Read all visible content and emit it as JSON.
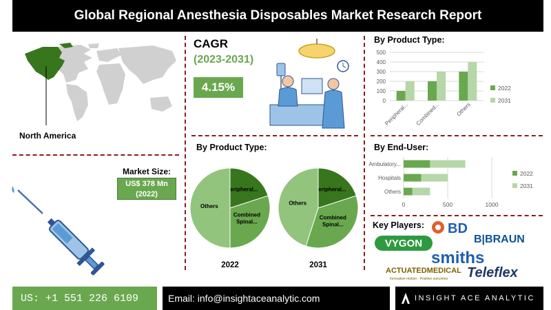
{
  "header": {
    "title": "Global Regional Anesthesia Disposables Market Research Report"
  },
  "region": {
    "label": "North America"
  },
  "market_size": {
    "label": "Market Size:",
    "value": "US$ 378 Mn",
    "year": "(2022)"
  },
  "cagr": {
    "label": "CAGR",
    "period": "(2023-2031)",
    "value": "4.15%"
  },
  "footer": {
    "phone": "US: +1 551 226 6109",
    "email": "Email: info@insightaceanalytic.com",
    "brand": "INSIGHT ACE ANALYTIC"
  },
  "key_players": {
    "title": "Key Players:",
    "logos": [
      "BD",
      "B|BRAUN",
      "VYGON",
      "smiths",
      "ACTUATEDMEDICAL",
      "Innovative motion - Positive outcomes",
      "Teleflex"
    ]
  },
  "colors": {
    "dark_green": "#6aa84f",
    "light_green": "#b6d7a8",
    "pie_dark": "#38761d",
    "pie_mid": "#6aa84f",
    "pie_light": "#93c47d"
  },
  "chart_data": [
    {
      "type": "bar",
      "title": "By Product Type:",
      "categories": [
        "Peripheral...",
        "Combined...",
        "Others"
      ],
      "series": [
        {
          "name": "2022",
          "values": [
            100,
            200,
            300
          ]
        },
        {
          "name": "2031",
          "values": [
            200,
            300,
            400
          ]
        }
      ],
      "ylim": [
        0,
        500
      ],
      "yticks": [
        "0",
        "100",
        "200",
        "300",
        "400",
        "500"
      ],
      "grid": true,
      "legend": "right"
    },
    {
      "type": "pie",
      "title": "By Product Type:",
      "charts": [
        {
          "label": "2022",
          "slices": [
            {
              "name": "Peripheral...",
              "value": 20
            },
            {
              "name": "Combined Spinal...",
              "value": 30
            },
            {
              "name": "Others",
              "value": 50
            }
          ]
        },
        {
          "label": "2031",
          "slices": [
            {
              "name": "Peripheral...",
              "value": 20
            },
            {
              "name": "Combined Spinal...",
              "value": 35
            },
            {
              "name": "Others",
              "value": 45
            }
          ]
        }
      ]
    },
    {
      "type": "bar",
      "orientation": "horizontal",
      "title": "By End-User:",
      "categories": [
        "Ambulatory...",
        "Hospitals",
        "Others"
      ],
      "series": [
        {
          "name": "2022",
          "values": [
            300,
            200,
            100
          ]
        },
        {
          "name": "2031",
          "values": [
            400,
            300,
            200
          ]
        }
      ],
      "xlim": [
        0,
        1000
      ],
      "xticks": [
        "0",
        "500",
        "1000"
      ],
      "stacked": true,
      "grid": true,
      "legend": "right"
    }
  ]
}
